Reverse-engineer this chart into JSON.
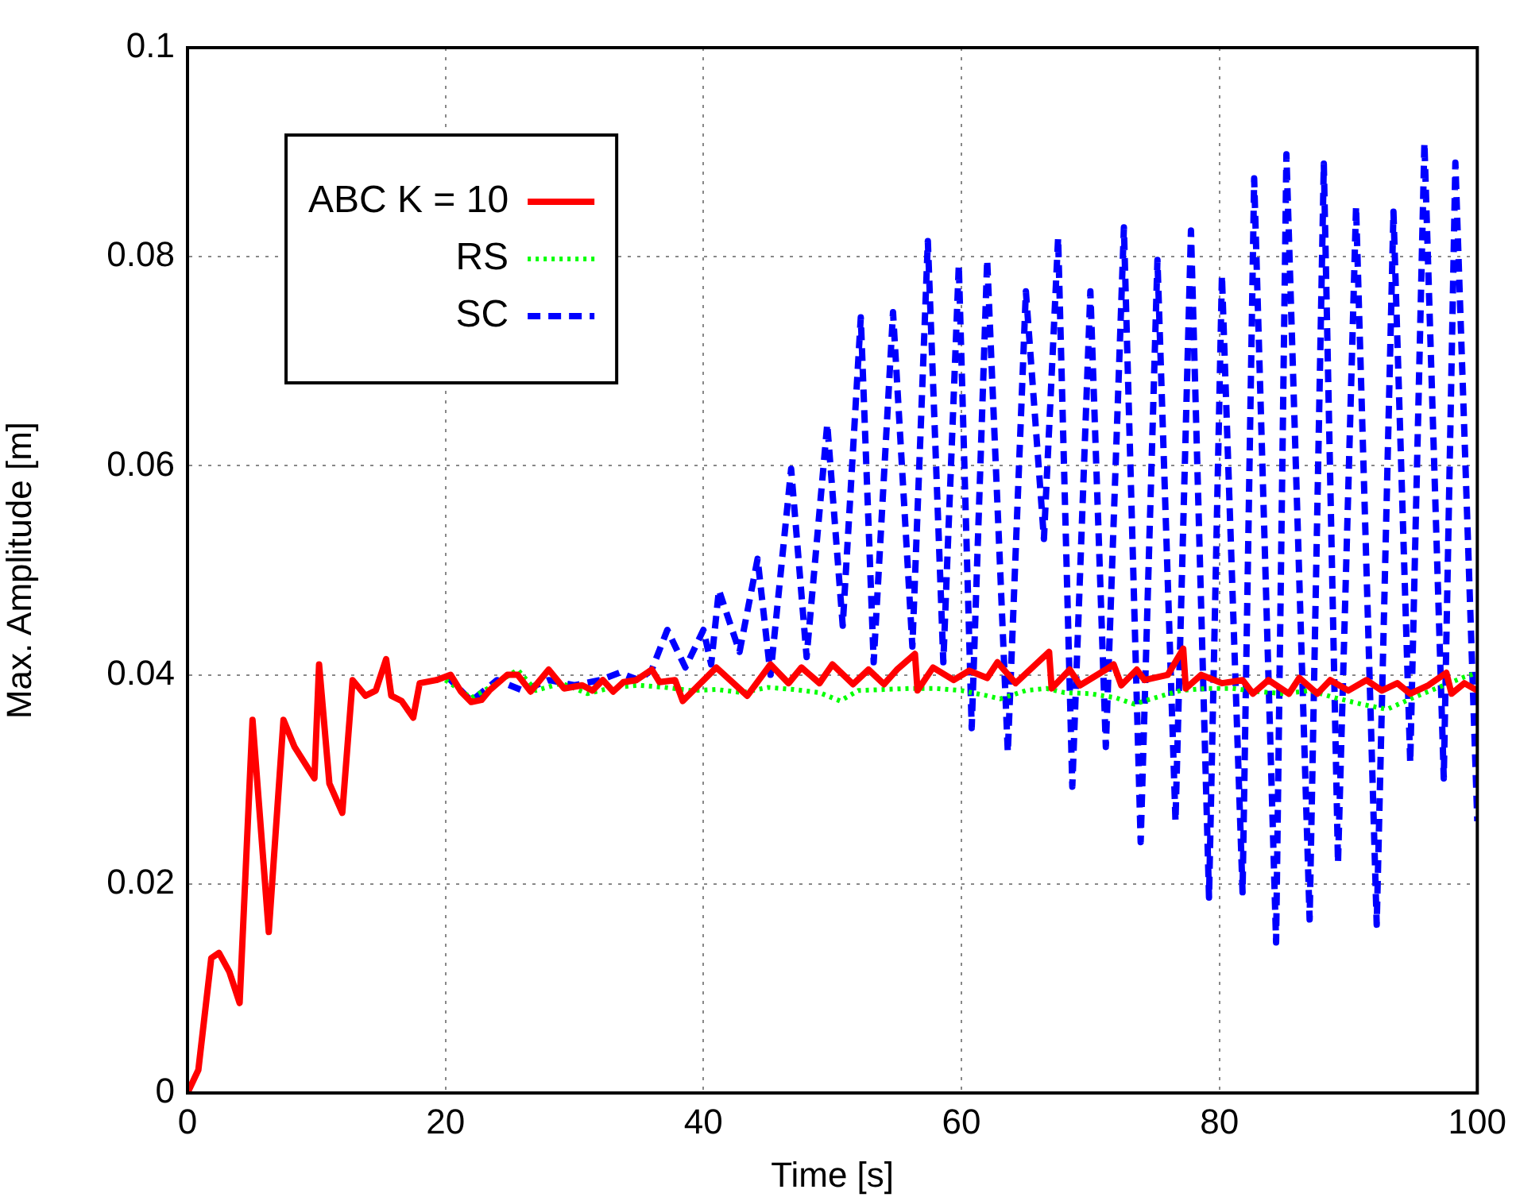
{
  "chart_data": {
    "type": "line",
    "xlabel": "Time [s]",
    "ylabel": "Max. Amplitude [m]",
    "xlim": [
      0,
      100
    ],
    "xticks": [
      0,
      20,
      40,
      60,
      80,
      100
    ],
    "ylim": [
      0,
      0.1
    ],
    "yticks": [
      0,
      0.02,
      0.04,
      0.06,
      0.08,
      0.1
    ],
    "grid": true,
    "legend": "top left",
    "marker": "none",
    "series": [
      {
        "name": "ABC K = 10",
        "color": "#ff0000",
        "line_style": "solid",
        "x": [
          0,
          0.84,
          1.84,
          2.44,
          3.24,
          4.04,
          5.04,
          6.3,
          7.44,
          8.3,
          9.84,
          10.2,
          11.0,
          12.0,
          12.8,
          13.8,
          14.6,
          15.4,
          15.8,
          16.6,
          17.5,
          18.0,
          19.3,
          20.4,
          21.2,
          22.0,
          22.8,
          23.4,
          24.8,
          25.6,
          26.6,
          28.0,
          29.2,
          30.6,
          31.4,
          32.2,
          33.0,
          33.8,
          34.8,
          36.0,
          36.6,
          37.8,
          38.4,
          41.0,
          43.4,
          45.2,
          46.6,
          47.6,
          49.0,
          50.0,
          51.6,
          52.8,
          54.0,
          55.0,
          56.4,
          56.6,
          57.8,
          59.4,
          60.6,
          62.0,
          62.8,
          64.2,
          66.8,
          67.0,
          68.4,
          69.2,
          71.2,
          71.8,
          72.4,
          73.6,
          74.2,
          76.0,
          77.2,
          77.4,
          78.6,
          80.2,
          81.8,
          82.6,
          83.8,
          85.4,
          86.2,
          87.6,
          88.6,
          90.0,
          91.4,
          92.6,
          93.8,
          94.8,
          96.2,
          97.6,
          98.0,
          99.0,
          100
        ],
        "values": [
          0,
          0.0022,
          0.0129,
          0.0134,
          0.0116,
          0.0086,
          0.0357,
          0.0154,
          0.0357,
          0.0331,
          0.0301,
          0.041,
          0.0296,
          0.0268,
          0.0395,
          0.038,
          0.0385,
          0.0415,
          0.038,
          0.0375,
          0.0359,
          0.0392,
          0.0395,
          0.04,
          0.0384,
          0.0374,
          0.0376,
          0.0385,
          0.04,
          0.04,
          0.0384,
          0.0405,
          0.0387,
          0.039,
          0.0385,
          0.0395,
          0.0384,
          0.0393,
          0.0395,
          0.0405,
          0.0393,
          0.0395,
          0.0375,
          0.0407,
          0.038,
          0.041,
          0.0392,
          0.0407,
          0.0392,
          0.041,
          0.0391,
          0.0405,
          0.0391,
          0.0405,
          0.042,
          0.0385,
          0.0407,
          0.0395,
          0.0404,
          0.0397,
          0.0412,
          0.0392,
          0.0422,
          0.0387,
          0.0405,
          0.039,
          0.0405,
          0.041,
          0.039,
          0.0405,
          0.0395,
          0.04,
          0.0425,
          0.0387,
          0.04,
          0.0392,
          0.0395,
          0.0382,
          0.0395,
          0.0382,
          0.0397,
          0.0382,
          0.0395,
          0.0385,
          0.0395,
          0.0385,
          0.0392,
          0.0382,
          0.039,
          0.0402,
          0.0382,
          0.0392,
          0.0385
        ]
      },
      {
        "name": "RS",
        "color": "#00ff00",
        "line_style": "dotted",
        "x": [
          20,
          22,
          24,
          25.6,
          27,
          29,
          31,
          33,
          35,
          37,
          39,
          41,
          43,
          45,
          47,
          49,
          50.6,
          52,
          54,
          56,
          58,
          60,
          62,
          63,
          65,
          66.6,
          68,
          70,
          72,
          73.4,
          75,
          77,
          79,
          81,
          83,
          85,
          87,
          89,
          91,
          93,
          95,
          97,
          99,
          100
        ],
        "values": [
          0.0395,
          0.0378,
          0.0392,
          0.0405,
          0.0385,
          0.0392,
          0.0382,
          0.0388,
          0.039,
          0.0388,
          0.0385,
          0.0386,
          0.0383,
          0.0388,
          0.0386,
          0.0383,
          0.0375,
          0.0385,
          0.0386,
          0.0387,
          0.0387,
          0.0385,
          0.038,
          0.0377,
          0.0385,
          0.0387,
          0.0383,
          0.0382,
          0.0378,
          0.0372,
          0.0378,
          0.0385,
          0.0387,
          0.0387,
          0.0384,
          0.0382,
          0.0385,
          0.0378,
          0.0372,
          0.0367,
          0.0378,
          0.0388,
          0.0398,
          0.0402
        ]
      },
      {
        "name": "SC",
        "color": "#0000ff",
        "line_style": "dashed",
        "x": [
          20,
          22,
          24,
          26,
          28,
          30,
          32,
          33.5,
          35,
          36.0,
          37.2,
          38.6,
          40.0,
          40.6,
          41.2,
          42.8,
          44.2,
          45.2,
          46.8,
          48.0,
          49.6,
          50.8,
          52.2,
          53.2,
          54.7,
          56.2,
          57.4,
          58.6,
          59.8,
          60.8,
          62.0,
          63.6,
          65.0,
          66.4,
          67.5,
          68.6,
          70.0,
          71.2,
          72.6,
          73.9,
          75.2,
          76.6,
          77.8,
          79.2,
          80.2,
          81.8,
          82.7,
          84.4,
          85.2,
          87.0,
          88.1,
          89.2,
          90.6,
          92.2,
          93.5,
          94.8,
          95.9,
          97.4,
          98.3,
          100
        ],
        "values": [
          0.04,
          0.0375,
          0.0395,
          0.0385,
          0.0395,
          0.039,
          0.0395,
          0.0402,
          0.0395,
          0.0405,
          0.0443,
          0.0407,
          0.0443,
          0.041,
          0.0481,
          0.0422,
          0.0511,
          0.04,
          0.0597,
          0.0417,
          0.064,
          0.0447,
          0.0742,
          0.0412,
          0.0747,
          0.0427,
          0.0815,
          0.0412,
          0.0792,
          0.0349,
          0.0797,
          0.0326,
          0.0767,
          0.053,
          0.0818,
          0.0293,
          0.0767,
          0.0331,
          0.0828,
          0.024,
          0.0797,
          0.026,
          0.0825,
          0.0187,
          0.0782,
          0.0192,
          0.0875,
          0.0144,
          0.0898,
          0.0166,
          0.0889,
          0.022,
          0.0848,
          0.0161,
          0.0843,
          0.0316,
          0.0909,
          0.0301,
          0.089,
          0.026
        ]
      }
    ]
  }
}
